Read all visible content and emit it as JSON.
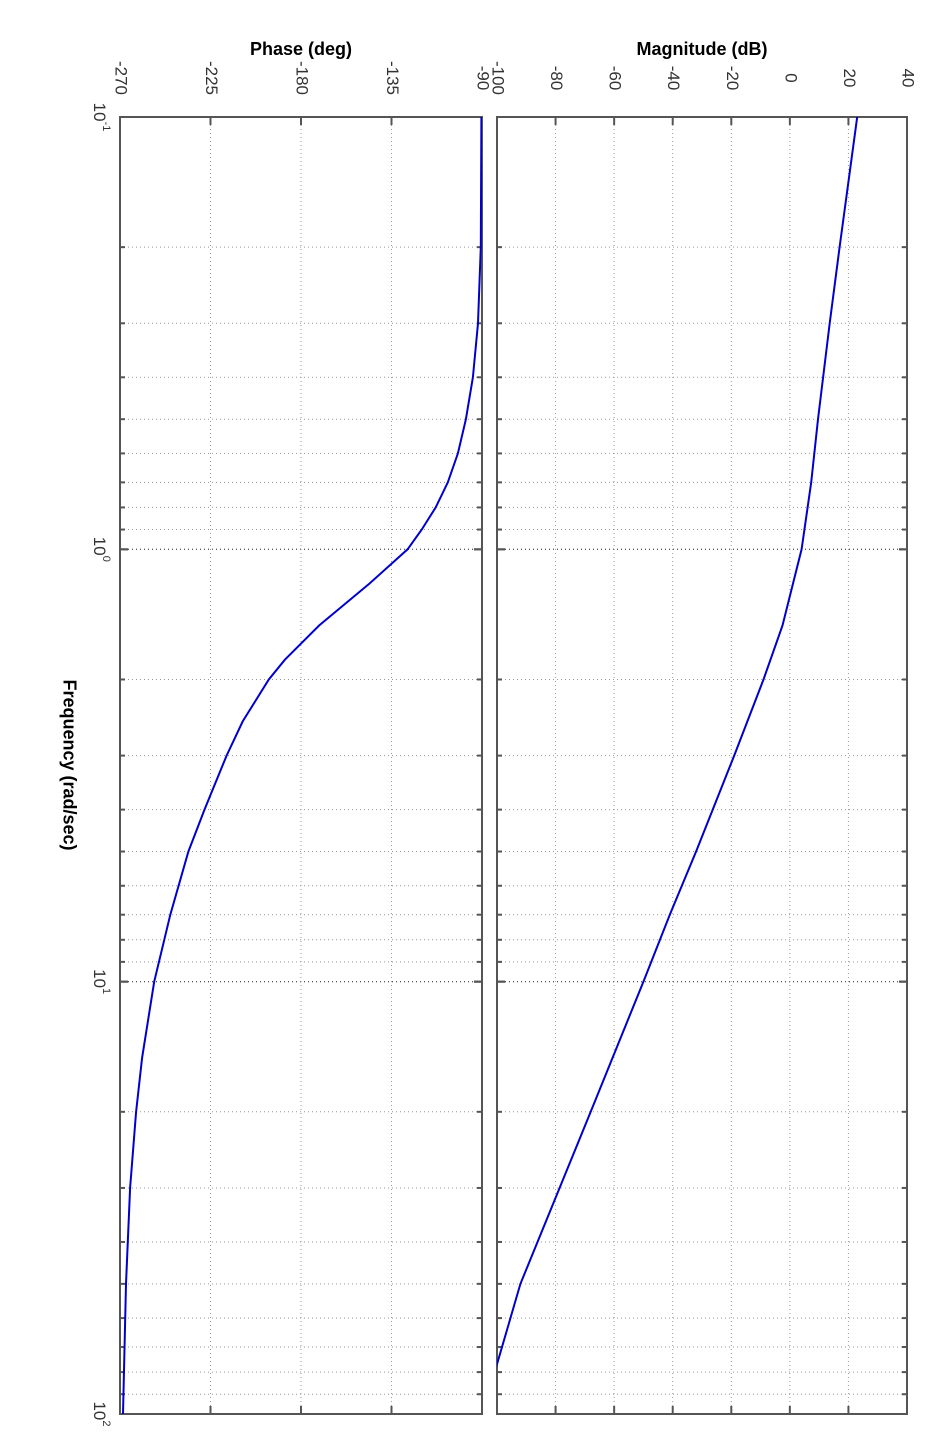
{
  "chart_data": [
    {
      "type": "line",
      "panel": "magnitude",
      "title": "",
      "ylabel": "Magnitude (dB)",
      "xlabel": "Frequency  (rad/sec)",
      "xscale": "log",
      "xlim": [
        0.1,
        100
      ],
      "ylim": [
        -100,
        40
      ],
      "yticks": [
        -100,
        -80,
        -60,
        -40,
        -20,
        0,
        20,
        40
      ],
      "ytick_labels": [
        "-100",
        "-80",
        "-60",
        "-40",
        "-20",
        "0",
        "20",
        "40"
      ],
      "grid": true,
      "series": [
        {
          "color": "#0000cc",
          "x": [
            0.1,
            0.2,
            0.3,
            0.5,
            0.7,
            1.0,
            1.5,
            2,
            3,
            5,
            7,
            10,
            20,
            50,
            95
          ],
          "y": [
            23,
            17,
            13.6,
            9.6,
            7.3,
            4,
            -2.5,
            -9,
            -19,
            -32,
            -41,
            -50,
            -68,
            -92,
            -104
          ]
        }
      ]
    },
    {
      "type": "line",
      "panel": "phase",
      "title": "",
      "ylabel": "Phase (deg)",
      "xlabel": "Frequency  (rad/sec)",
      "xscale": "log",
      "xlim": [
        0.1,
        100
      ],
      "ylim": [
        -270,
        -90
      ],
      "yticks": [
        -270,
        -225,
        -180,
        -135,
        -90
      ],
      "ytick_labels": [
        "-270",
        "-225",
        "-180",
        "-135",
        "-90"
      ],
      "grid": true,
      "series": [
        {
          "color": "#0000cc",
          "x": [
            0.1,
            0.2,
            0.3,
            0.4,
            0.5,
            0.6,
            0.7,
            0.8,
            0.9,
            1.0,
            1.2,
            1.5,
            1.8,
            2,
            2.5,
            3,
            4,
            5,
            7,
            10,
            15,
            20,
            30,
            50,
            100
          ],
          "y": [
            -90.3,
            -90.6,
            -92,
            -94.5,
            -98,
            -102,
            -107,
            -113,
            -120,
            -127,
            -146,
            -171,
            -188,
            -196,
            -209,
            -217,
            -228,
            -236,
            -245,
            -253,
            -259,
            -262,
            -265,
            -267,
            -268.5
          ]
        }
      ]
    }
  ],
  "x_tick_labels": [
    {
      "base": "10",
      "exp": "-1"
    },
    {
      "base": "10",
      "exp": "0"
    },
    {
      "base": "10",
      "exp": "1"
    },
    {
      "base": "10",
      "exp": "2"
    }
  ]
}
